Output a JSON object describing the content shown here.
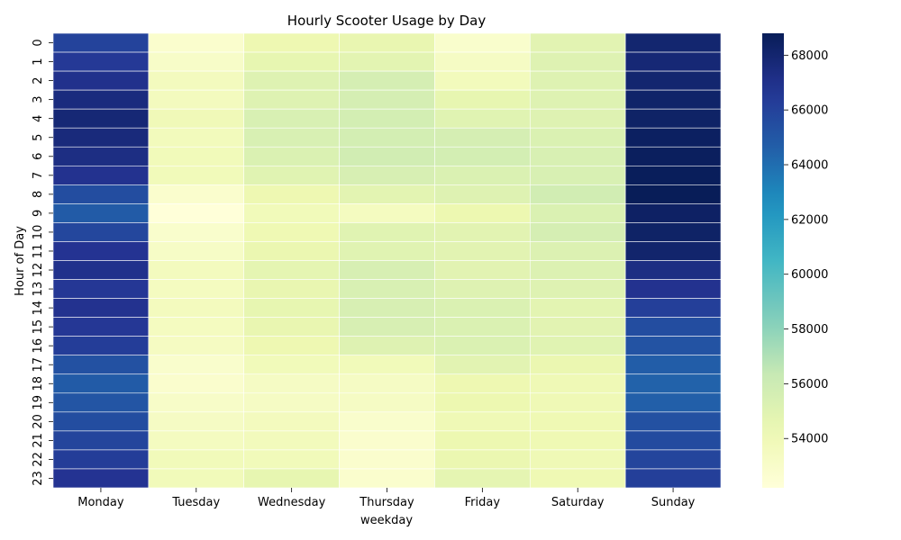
{
  "chart_data": {
    "type": "heatmap",
    "title": "Hourly Scooter Usage by Day",
    "xlabel": "weekday",
    "ylabel": "Hour of Day",
    "x_categories": [
      "Monday",
      "Tuesday",
      "Wednesday",
      "Thursday",
      "Friday",
      "Saturday",
      "Sunday"
    ],
    "y_categories": [
      "0",
      "1",
      "2",
      "3",
      "4",
      "5",
      "6",
      "7",
      "8",
      "9",
      "10",
      "11",
      "12",
      "13",
      "14",
      "15",
      "16",
      "17",
      "18",
      "19",
      "20",
      "21",
      "22",
      "23"
    ],
    "colormap": "YlGnBu",
    "color_range": [
      52200,
      68800
    ],
    "colorbar_ticks": [
      54000,
      56000,
      58000,
      60000,
      62000,
      64000,
      66000,
      68000
    ],
    "colorbar_tick_labels": [
      "54000",
      "56000",
      "58000",
      "60000",
      "62000",
      "64000",
      "66000",
      "68000"
    ],
    "values": [
      [
        66000,
        52800,
        54200,
        54500,
        52900,
        54900,
        68000
      ],
      [
        66500,
        53100,
        54600,
        54800,
        53300,
        55100,
        67800
      ],
      [
        67000,
        53600,
        55100,
        55600,
        53700,
        55100,
        68000
      ],
      [
        67500,
        53600,
        55100,
        55600,
        54600,
        55100,
        68200
      ],
      [
        67800,
        53900,
        55400,
        55700,
        55000,
        55100,
        68300
      ],
      [
        67600,
        53700,
        55400,
        55700,
        55600,
        55300,
        68500
      ],
      [
        67300,
        53800,
        55300,
        55800,
        55700,
        55400,
        68600
      ],
      [
        66900,
        53800,
        55000,
        55500,
        55300,
        55400,
        68700
      ],
      [
        65500,
        52800,
        54200,
        54800,
        55100,
        55800,
        68800
      ],
      [
        64800,
        52200,
        53800,
        53500,
        54300,
        55300,
        68400
      ],
      [
        65800,
        52900,
        54100,
        55000,
        54900,
        55600,
        68300
      ],
      [
        66800,
        53200,
        54400,
        55000,
        54900,
        55200,
        68100
      ],
      [
        67000,
        53600,
        54700,
        55500,
        54900,
        55200,
        67300
      ],
      [
        66600,
        53500,
        54500,
        55400,
        55100,
        55100,
        66900
      ],
      [
        66900,
        53600,
        54600,
        55500,
        55300,
        54800,
        66200
      ],
      [
        66600,
        53500,
        54500,
        55500,
        55300,
        54900,
        65500
      ],
      [
        66300,
        53400,
        54200,
        55100,
        55300,
        55000,
        65200
      ],
      [
        65300,
        52900,
        53800,
        53800,
        54900,
        54400,
        64700
      ],
      [
        64800,
        52800,
        53300,
        53300,
        54200,
        54000,
        64500
      ],
      [
        65100,
        53100,
        53300,
        53300,
        54300,
        54000,
        64600
      ],
      [
        65500,
        53300,
        53600,
        52900,
        54000,
        54100,
        65300
      ],
      [
        65900,
        53500,
        53700,
        52800,
        54300,
        54100,
        65600
      ],
      [
        66300,
        53800,
        53800,
        52800,
        54400,
        54000,
        65900
      ],
      [
        66800,
        53800,
        54600,
        52800,
        54700,
        54100,
        66200
      ]
    ]
  }
}
